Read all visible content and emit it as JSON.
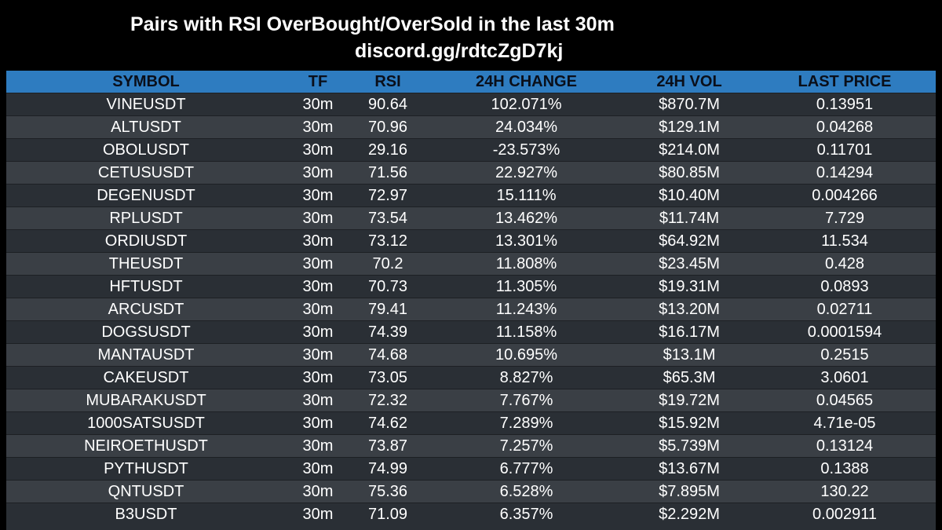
{
  "header": {
    "title": "Pairs with RSI OverBought/OverSold in the last 30m",
    "subtitle": "discord.gg/rdtcZgD7kj"
  },
  "table": {
    "columns": [
      "SYMBOL",
      "TF",
      "RSI",
      "24H CHANGE",
      "24H VOL",
      "LAST PRICE"
    ],
    "rows": [
      [
        "VINEUSDT",
        "30m",
        "90.64",
        "102.071%",
        "$870.7M",
        "0.13951"
      ],
      [
        "ALTUSDT",
        "30m",
        "70.96",
        "24.034%",
        "$129.1M",
        "0.04268"
      ],
      [
        "OBOLUSDT",
        "30m",
        "29.16",
        "-23.573%",
        "$214.0M",
        "0.11701"
      ],
      [
        "CETUSUSDT",
        "30m",
        "71.56",
        "22.927%",
        "$80.85M",
        "0.14294"
      ],
      [
        "DEGENUSDT",
        "30m",
        "72.97",
        "15.111%",
        "$10.40M",
        "0.004266"
      ],
      [
        "RPLUSDT",
        "30m",
        "73.54",
        "13.462%",
        "$11.74M",
        "7.729"
      ],
      [
        "ORDIUSDT",
        "30m",
        "73.12",
        "13.301%",
        "$64.92M",
        "11.534"
      ],
      [
        "THEUSDT",
        "30m",
        "70.2",
        "11.808%",
        "$23.45M",
        "0.428"
      ],
      [
        "HFTUSDT",
        "30m",
        "70.73",
        "11.305%",
        "$19.31M",
        "0.0893"
      ],
      [
        "ARCUSDT",
        "30m",
        "79.41",
        "11.243%",
        "$13.20M",
        "0.02711"
      ],
      [
        "DOGSUSDT",
        "30m",
        "74.39",
        "11.158%",
        "$16.17M",
        "0.0001594"
      ],
      [
        "MANTAUSDT",
        "30m",
        "74.68",
        "10.695%",
        "$13.1M",
        "0.2515"
      ],
      [
        "CAKEUSDT",
        "30m",
        "73.05",
        "8.827%",
        "$65.3M",
        "3.0601"
      ],
      [
        "MUBARAKUSDT",
        "30m",
        "72.32",
        "7.767%",
        "$19.72M",
        "0.04565"
      ],
      [
        "1000SATSUSDT",
        "30m",
        "74.62",
        "7.289%",
        "$15.92M",
        "4.71e-05"
      ],
      [
        "NEIROETHUSDT",
        "30m",
        "73.87",
        "7.257%",
        "$5.739M",
        "0.13124"
      ],
      [
        "PYTHUSDT",
        "30m",
        "74.99",
        "6.777%",
        "$13.67M",
        "0.1388"
      ],
      [
        "QNTUSDT",
        "30m",
        "75.36",
        "6.528%",
        "$7.895M",
        "130.22"
      ],
      [
        "B3USDT",
        "30m",
        "71.09",
        "6.357%",
        "$2.292M",
        "0.002911"
      ]
    ]
  },
  "colors": {
    "background": "#000000",
    "header_bg": "#2e7cc0",
    "row_dark": "#2a2f35",
    "row_light": "#3a3f45",
    "text": "#ffffff"
  }
}
